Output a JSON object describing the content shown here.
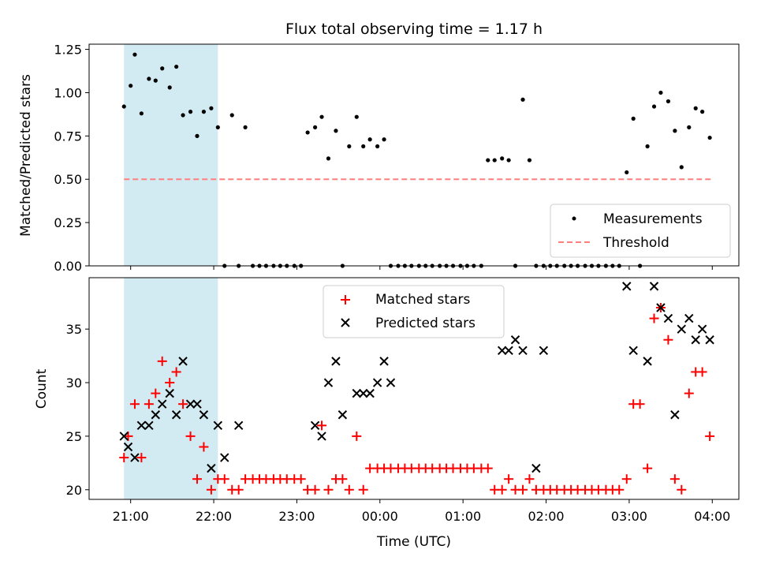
{
  "chart_data": [
    {
      "type": "scatter",
      "title": "Flux total observing time = 1.17 h",
      "xlabel": "",
      "ylabel": "Matched/Predicted stars",
      "ylim": [
        0,
        1.28
      ],
      "yticks": [
        "0.00",
        "0.25",
        "0.50",
        "0.75",
        "1.00",
        "1.25"
      ],
      "ytick_values": [
        0,
        0.25,
        0.5,
        0.75,
        1.0,
        1.25
      ],
      "legend": {
        "position": "lower-right",
        "entries": [
          "Measurements",
          "Threshold"
        ]
      },
      "threshold": {
        "name": "Threshold",
        "value": 0.5,
        "color": "#ff7f7f",
        "x_start": 20.92,
        "x_end": 27.98
      },
      "shaded_span": {
        "x_start": 20.92,
        "x_end": 22.05,
        "color": "#add8e6"
      },
      "series": [
        {
          "name": "Measurements",
          "color": "#000000",
          "x": [
            20.92,
            21.0,
            21.05,
            21.13,
            21.22,
            21.3,
            21.38,
            21.47,
            21.55,
            21.63,
            21.72,
            21.8,
            21.88,
            21.97,
            22.05,
            22.13,
            22.22,
            22.3,
            22.38,
            22.47,
            22.55,
            22.63,
            22.72,
            22.8,
            22.88,
            22.97,
            23.05,
            23.13,
            23.22,
            23.3,
            23.38,
            23.47,
            23.55,
            23.63,
            23.72,
            23.8,
            23.88,
            23.97,
            24.05,
            24.13,
            24.22,
            24.3,
            24.38,
            24.47,
            24.55,
            24.63,
            24.72,
            24.8,
            24.88,
            24.97,
            25.05,
            25.13,
            25.22,
            25.3,
            25.38,
            25.47,
            25.55,
            25.63,
            25.72,
            25.8,
            25.88,
            25.97,
            26.05,
            26.13,
            26.22,
            26.3,
            26.38,
            26.47,
            26.55,
            26.63,
            26.72,
            26.8,
            26.88,
            26.97,
            27.05,
            27.13,
            27.22,
            27.3,
            27.38,
            27.47,
            27.55,
            27.63,
            27.72,
            27.8,
            27.88,
            27.97
          ],
          "y": [
            0.92,
            1.04,
            1.22,
            0.88,
            1.08,
            1.07,
            1.14,
            1.03,
            1.15,
            0.87,
            0.89,
            0.75,
            0.89,
            0.91,
            0.8,
            0.0,
            0.87,
            0.0,
            0.8,
            0.0,
            0.0,
            0.0,
            0.0,
            0.0,
            0.0,
            0.0,
            0.0,
            0.77,
            0.8,
            0.86,
            0.62,
            0.78,
            0.0,
            0.69,
            0.86,
            0.69,
            0.73,
            0.69,
            0.73,
            0.0,
            0.0,
            0.0,
            0.0,
            0.0,
            0.0,
            0.0,
            0.0,
            0.0,
            0.0,
            0.0,
            0.0,
            0.0,
            0.0,
            0.61,
            0.61,
            0.62,
            0.61,
            0.0,
            0.96,
            0.61,
            0.0,
            0.0,
            0.0,
            0.0,
            0.0,
            0.0,
            0.0,
            0.0,
            0.0,
            0.0,
            0.0,
            0.0,
            0.0,
            0.54,
            0.85,
            0.0,
            0.69,
            0.92,
            1.0,
            0.95,
            0.78,
            0.57,
            0.8,
            0.91,
            0.89,
            0.74
          ]
        }
      ]
    },
    {
      "type": "scatter",
      "title": "",
      "xlabel": "Time (UTC)",
      "ylabel": "Count",
      "ylim": [
        19.1,
        39.8
      ],
      "yticks": [
        "20",
        "25",
        "30",
        "35"
      ],
      "ytick_values": [
        20,
        25,
        30,
        35
      ],
      "xlim": [
        20.5,
        28.32
      ],
      "xticks": [
        "21:00",
        "22:00",
        "23:00",
        "00:00",
        "01:00",
        "02:00",
        "03:00",
        "04:00"
      ],
      "xtick_values": [
        21,
        22,
        23,
        24,
        25,
        26,
        27,
        28
      ],
      "legend": {
        "position": "top-center",
        "entries": [
          "Matched stars",
          "Predicted stars"
        ]
      },
      "shaded_span": {
        "x_start": 20.92,
        "x_end": 22.05,
        "color": "#add8e6"
      },
      "series": [
        {
          "name": "Matched stars",
          "marker": "+",
          "color": "#ff0000",
          "x": [
            20.92,
            20.97,
            21.05,
            21.13,
            21.22,
            21.3,
            21.38,
            21.47,
            21.55,
            21.63,
            21.72,
            21.8,
            21.88,
            21.97,
            22.05,
            22.13,
            22.22,
            22.3,
            22.38,
            22.47,
            22.55,
            22.63,
            22.72,
            22.8,
            22.88,
            22.97,
            23.05,
            23.13,
            23.22,
            23.3,
            23.38,
            23.47,
            23.55,
            23.63,
            23.72,
            23.8,
            23.88,
            23.97,
            24.05,
            24.13,
            24.22,
            24.3,
            24.38,
            24.47,
            24.55,
            24.63,
            24.72,
            24.8,
            24.88,
            24.97,
            25.05,
            25.13,
            25.22,
            25.3,
            25.38,
            25.47,
            25.55,
            25.63,
            25.72,
            25.8,
            25.88,
            25.97,
            26.05,
            26.13,
            26.22,
            26.3,
            26.38,
            26.47,
            26.55,
            26.63,
            26.72,
            26.8,
            26.88,
            26.97,
            27.05,
            27.13,
            27.22,
            27.3,
            27.38,
            27.47,
            27.55,
            27.63,
            27.72,
            27.8,
            27.88,
            27.97
          ],
          "y": [
            23,
            25,
            28,
            23,
            28,
            29,
            32,
            30,
            31,
            28,
            25,
            21,
            24,
            20,
            21,
            21,
            20,
            20,
            21,
            21,
            21,
            21,
            21,
            21,
            21,
            21,
            21,
            20,
            20,
            26,
            20,
            21,
            21,
            20,
            25,
            20,
            22,
            22,
            22,
            22,
            22,
            22,
            22,
            22,
            22,
            22,
            22,
            22,
            22,
            22,
            22,
            22,
            22,
            22,
            20,
            20,
            21,
            20,
            20,
            21,
            20,
            20,
            20,
            20,
            20,
            20,
            20,
            20,
            20,
            20,
            20,
            20,
            20,
            21,
            28,
            28,
            22,
            36,
            37,
            34,
            21,
            20,
            29,
            31,
            31,
            25
          ]
        },
        {
          "name": "Predicted stars",
          "marker": "x",
          "color": "#000000",
          "x": [
            20.92,
            20.97,
            21.05,
            21.13,
            21.22,
            21.3,
            21.38,
            21.47,
            21.55,
            21.63,
            21.72,
            21.8,
            21.88,
            21.97,
            22.05,
            22.13,
            22.3,
            23.22,
            23.3,
            23.38,
            23.47,
            23.55,
            23.72,
            23.8,
            23.88,
            23.97,
            24.05,
            24.13,
            25.47,
            25.55,
            25.63,
            25.72,
            25.88,
            25.97,
            26.97,
            27.05,
            27.22,
            27.3,
            27.38,
            27.47,
            27.55,
            27.63,
            27.72,
            27.8,
            27.88,
            27.97
          ],
          "y": [
            25,
            24,
            23,
            26,
            26,
            27,
            28,
            29,
            27,
            32,
            28,
            28,
            27,
            22,
            26,
            23,
            26,
            26,
            25,
            30,
            32,
            27,
            29,
            29,
            29,
            30,
            32,
            30,
            33,
            33,
            34,
            33,
            22,
            33,
            39,
            33,
            32,
            39,
            37,
            36,
            27,
            35,
            36,
            34,
            35,
            34
          ]
        }
      ]
    }
  ]
}
